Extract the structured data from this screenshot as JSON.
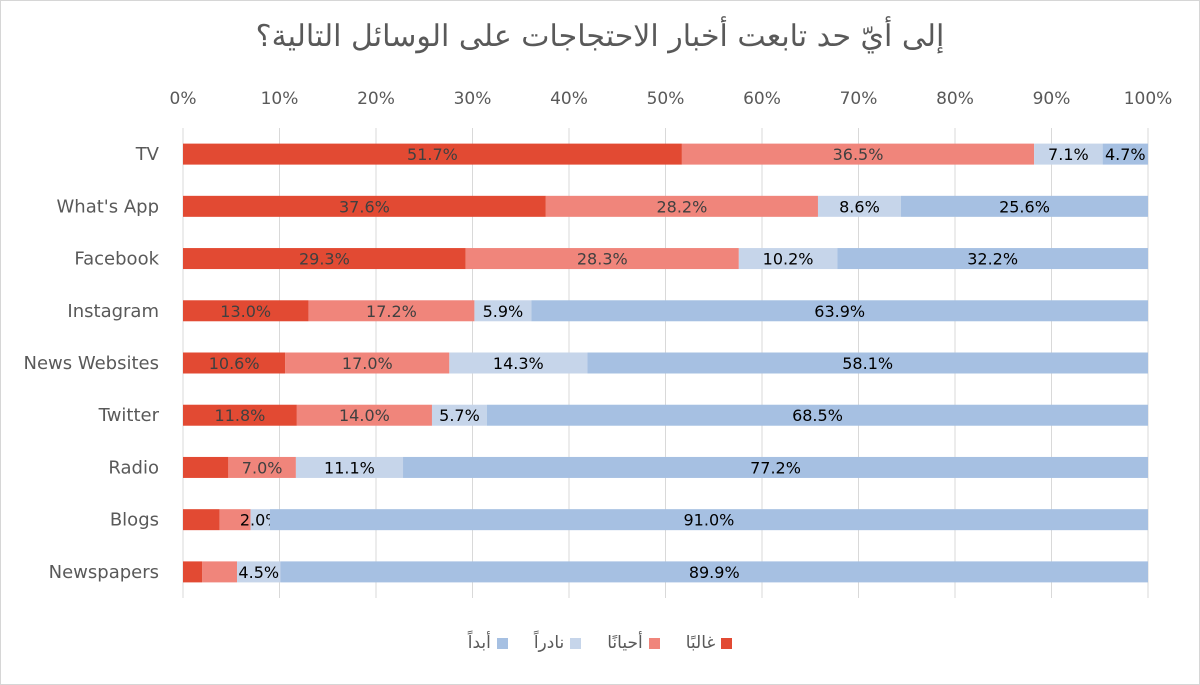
{
  "chart_data": {
    "type": "bar",
    "orientation": "horizontal",
    "stacked": "100%",
    "title": "إلى أيّ حد تابعت أخبار الاحتجاجات على الوسائل التالية؟",
    "xlim": [
      0,
      100
    ],
    "x_ticks": [
      "0%",
      "10%",
      "20%",
      "30%",
      "40%",
      "50%",
      "60%",
      "70%",
      "80%",
      "90%",
      "100%"
    ],
    "grid": "vertical",
    "legend_position": "bottom",
    "categories": [
      "TV",
      "What's App",
      "Facebook",
      "Instagram",
      "News Websites",
      "Twitter",
      "Radio",
      "Blogs",
      "Newspapers"
    ],
    "series": [
      {
        "name": "غالبًا",
        "color": "#E24A33",
        "values": [
          51.7,
          37.6,
          29.3,
          13.0,
          10.6,
          11.8,
          4.7,
          3.8,
          2.0
        ],
        "labels": [
          "51.7%",
          "37.6%",
          "29.3%",
          "13.0%",
          "10.6%",
          "11.8%",
          "",
          "",
          ""
        ]
      },
      {
        "name": "أحيانًا",
        "color": "#F0857B",
        "values": [
          36.5,
          28.2,
          28.3,
          17.2,
          17.0,
          14.0,
          7.0,
          3.2,
          3.6
        ],
        "labels": [
          "36.5%",
          "28.2%",
          "28.3%",
          "17.2%",
          "17.0%",
          "14.0%",
          "7.0%",
          "",
          ""
        ]
      },
      {
        "name": "نادراً",
        "color": "#C6D5EA",
        "values": [
          7.1,
          8.6,
          10.2,
          5.9,
          14.3,
          5.7,
          11.1,
          2.0,
          4.5
        ],
        "labels": [
          "7.1%",
          "8.6%",
          "10.2%",
          "5.9%",
          "14.3%",
          "5.7%",
          "11.1%",
          "2.0%",
          "4.5%"
        ]
      },
      {
        "name": "أبداً",
        "color": "#A6C0E2",
        "values": [
          4.7,
          25.6,
          32.2,
          63.9,
          58.1,
          68.5,
          77.2,
          91.0,
          89.9
        ],
        "labels": [
          "4.7%",
          "25.6%",
          "32.2%",
          "63.9%",
          "58.1%",
          "68.5%",
          "77.2%",
          "91.0%",
          "89.9%"
        ]
      }
    ]
  }
}
